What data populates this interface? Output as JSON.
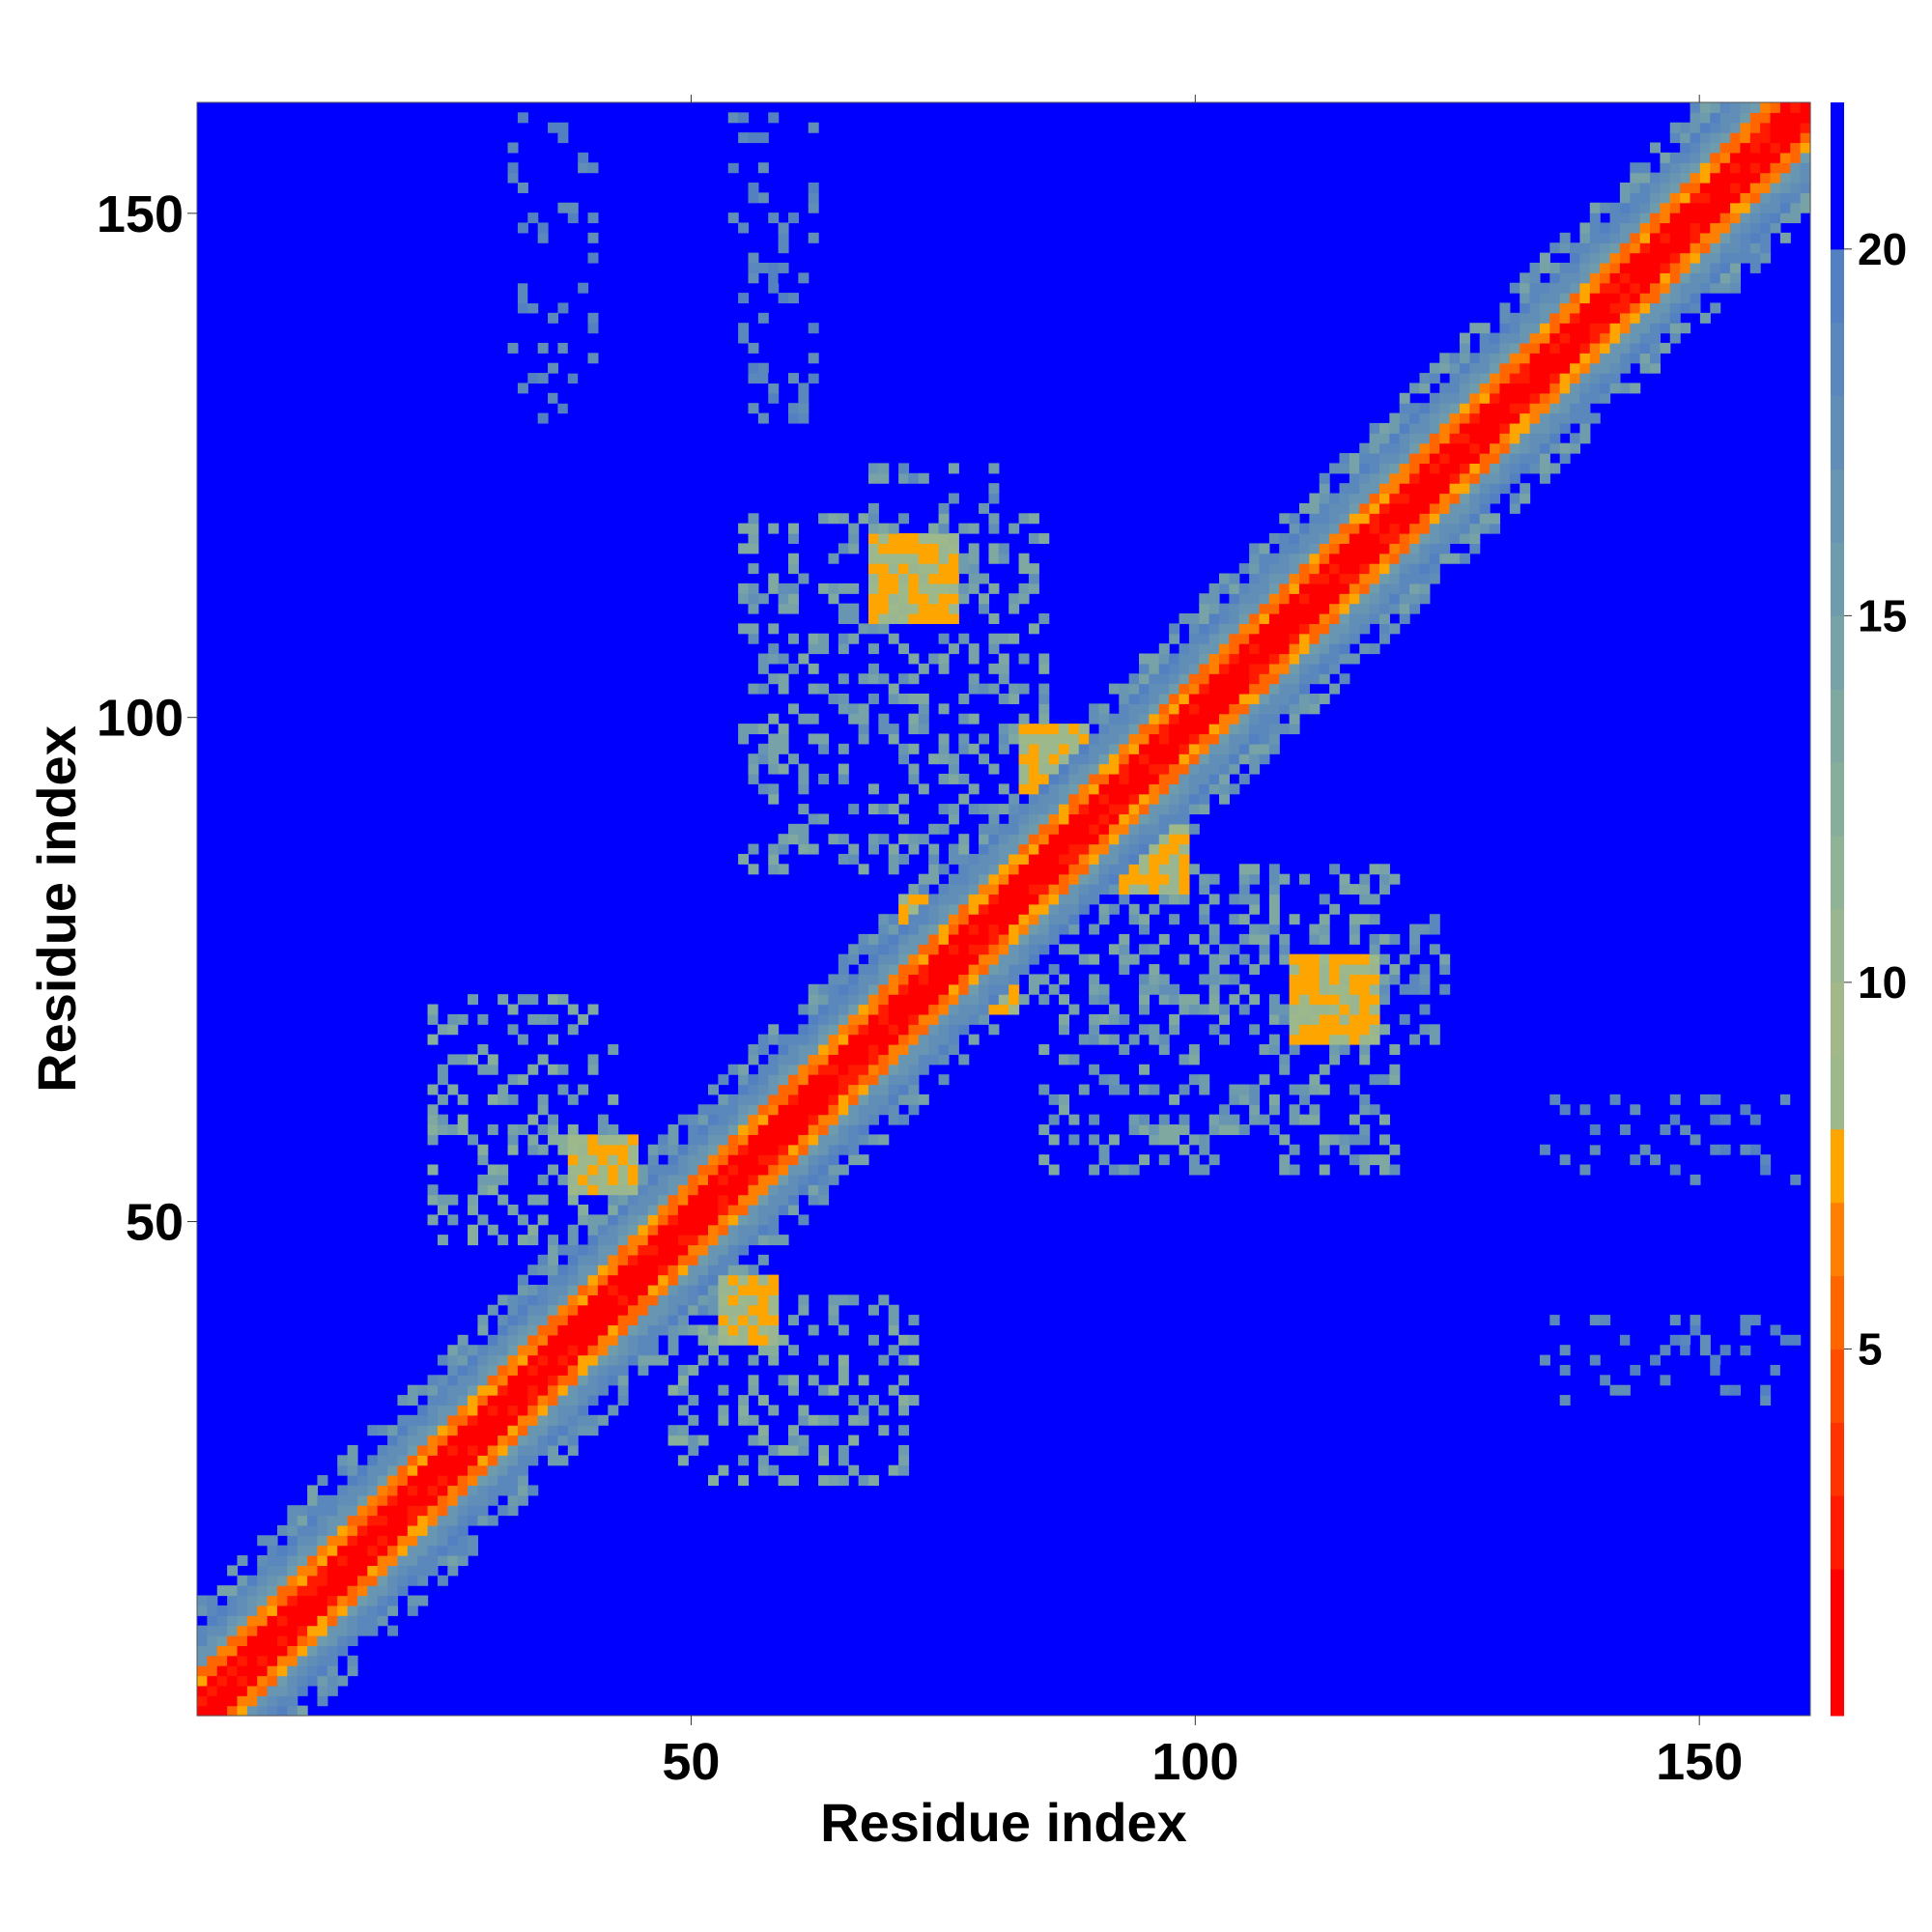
{
  "chart_data": {
    "type": "heatmap",
    "title": "",
    "xlabel": "Residue index",
    "ylabel": "Residue index",
    "xlim": [
      1,
      161
    ],
    "ylim": [
      1,
      161
    ],
    "n_residues": 161,
    "x_ticks": [
      50,
      100,
      150
    ],
    "y_ticks": [
      50,
      100,
      150
    ],
    "colorbar": {
      "range": [
        0,
        22
      ],
      "ticks": [
        5,
        10,
        15,
        20
      ],
      "colors": [
        {
          "max": 2,
          "color": "#ff0000"
        },
        {
          "max": 3,
          "color": "#ff1a00"
        },
        {
          "max": 4,
          "color": "#ff3300"
        },
        {
          "max": 5,
          "color": "#ff4d00"
        },
        {
          "max": 6,
          "color": "#ff6600"
        },
        {
          "max": 7,
          "color": "#ff8000"
        },
        {
          "max": 8,
          "color": "#ffa500"
        },
        {
          "max": 9,
          "color": "#9db88a"
        },
        {
          "max": 10,
          "color": "#a2b889"
        },
        {
          "max": 11,
          "color": "#99b690"
        },
        {
          "max": 12,
          "color": "#90b396"
        },
        {
          "max": 13,
          "color": "#87ae9b"
        },
        {
          "max": 14,
          "color": "#7fa8a1"
        },
        {
          "max": 15,
          "color": "#77a2a7"
        },
        {
          "max": 16,
          "color": "#6f9cad"
        },
        {
          "max": 17,
          "color": "#6895b2"
        },
        {
          "max": 18,
          "color": "#618eb7"
        },
        {
          "max": 19,
          "color": "#5a87bc"
        },
        {
          "max": 20,
          "color": "#5380c0"
        },
        {
          "max": 22,
          "color": "#0000ff"
        }
      ]
    },
    "description_values": {
      "diagonal_distance": 1.5,
      "near_diagonal_distance": 6,
      "background_distance": 22
    },
    "contact_regions": [
      {
        "x": [
          68,
          76
        ],
        "y": [
          110,
          118
        ],
        "value": 7
      },
      {
        "x": [
          110,
          118
        ],
        "y": [
          68,
          76
        ],
        "value": 7
      },
      {
        "x": [
          83,
          89
        ],
        "y": [
          93,
          99
        ],
        "value": 7
      },
      {
        "x": [
          93,
          99
        ],
        "y": [
          83,
          89
        ],
        "value": 7
      },
      {
        "x": [
          71,
          75
        ],
        "y": [
          78,
          82
        ],
        "value": 7
      },
      {
        "x": [
          78,
          82
        ],
        "y": [
          71,
          75
        ],
        "value": 7
      },
      {
        "x": [
          103,
          107
        ],
        "y": [
          106,
          111
        ],
        "value": 7
      },
      {
        "x": [
          106,
          111
        ],
        "y": [
          103,
          107
        ],
        "value": 7
      },
      {
        "x": [
          38,
          44
        ],
        "y": [
          53,
          58
        ],
        "value": 7
      },
      {
        "x": [
          53,
          58
        ],
        "y": [
          38,
          44
        ],
        "value": 7
      }
    ],
    "cluster_regions": [
      {
        "x": [
          24,
          42
        ],
        "y": [
          48,
          72
        ],
        "value": 12
      },
      {
        "x": [
          48,
          72
        ],
        "y": [
          24,
          42
        ],
        "value": 12
      },
      {
        "x": [
          55,
          85
        ],
        "y": [
          85,
          120
        ],
        "value": 13
      },
      {
        "x": [
          85,
          120
        ],
        "y": [
          55,
          85
        ],
        "value": 13
      },
      {
        "x": [
          32,
          40
        ],
        "y": [
          130,
          160
        ],
        "value": 17
      },
      {
        "x": [
          54,
          62
        ],
        "y": [
          130,
          160
        ],
        "value": 17
      },
      {
        "x": [
          135,
          160
        ],
        "y": [
          32,
          40
        ],
        "value": 17
      },
      {
        "x": [
          135,
          160
        ],
        "y": [
          54,
          62
        ],
        "value": 17
      },
      {
        "x": [
          95,
          125
        ],
        "y": [
          68,
          80
        ],
        "value": 14
      },
      {
        "x": [
          68,
          80
        ],
        "y": [
          95,
          125
        ],
        "value": 14
      }
    ]
  }
}
